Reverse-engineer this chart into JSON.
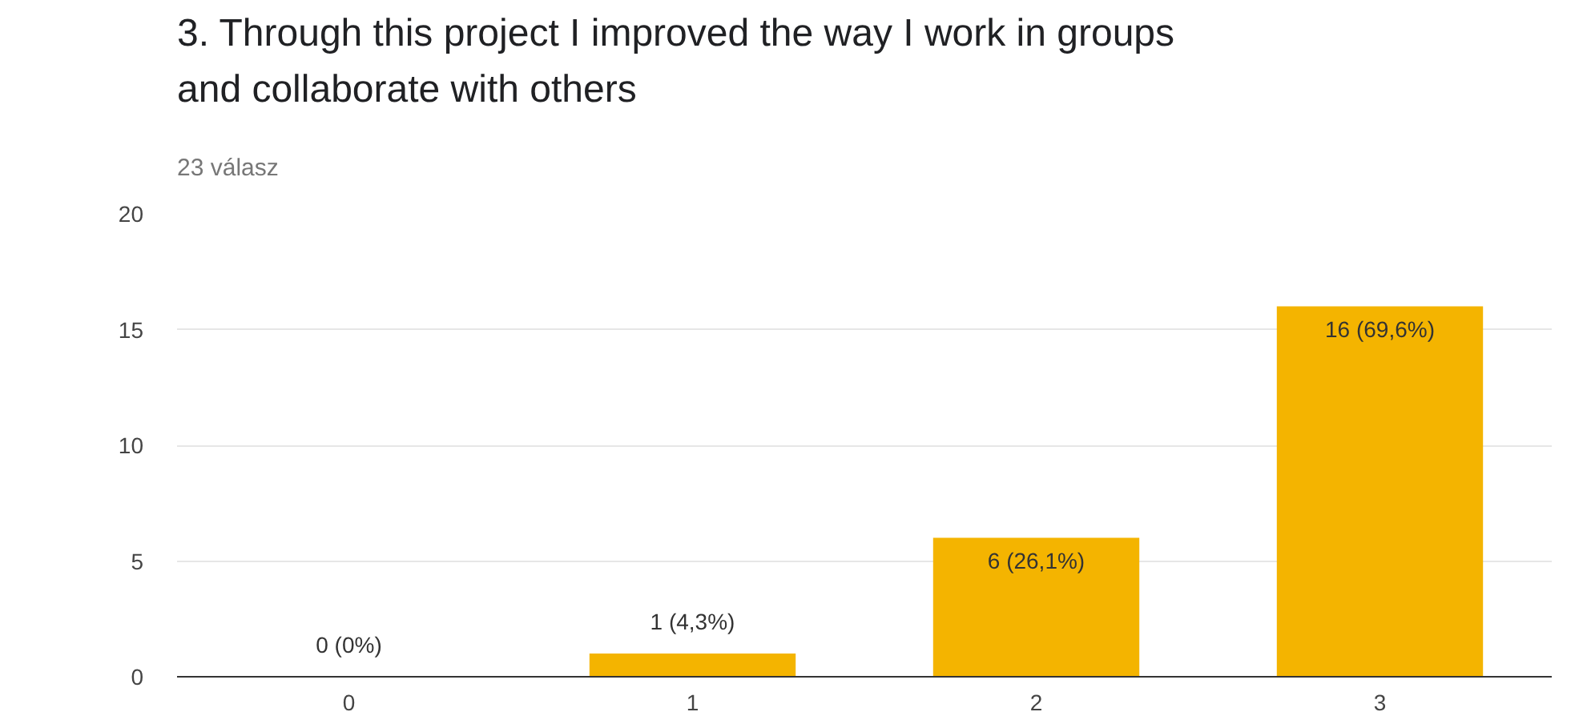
{
  "chart_data": {
    "type": "bar",
    "title": "3. Through this project I improved the way I work in groups and collaborate with others",
    "subtitle": "23 válasz",
    "categories": [
      "0",
      "1",
      "2",
      "3"
    ],
    "values": [
      0,
      1,
      6,
      16
    ],
    "color": "#f4b400",
    "value_labels": [
      "0 (0%)",
      "1 (4,3%)",
      "6 (26,1%)",
      "16 (69,6%)"
    ],
    "ylim": [
      0,
      20
    ],
    "yticks": [
      0,
      5,
      10,
      15,
      20
    ],
    "grid": "y"
  }
}
